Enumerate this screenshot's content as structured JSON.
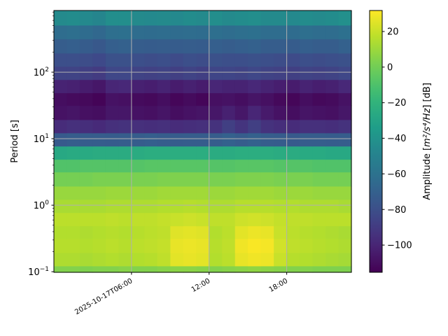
{
  "chart_data": {
    "type": "heatmap",
    "colormap": "viridis",
    "title": "",
    "xlabel": "",
    "ylabel": "Period [s]",
    "yscale": "log",
    "grid": true,
    "xlim": [
      "2025-10-17T00:00",
      "2025-10-17T23:00"
    ],
    "ylim": [
      0.098,
      845
    ],
    "x_ticks": [
      {
        "time": "2025-10-17T06:00",
        "label": "2025-10-17T06:00"
      },
      {
        "time": "2025-10-17T12:00",
        "label": "12:00"
      },
      {
        "time": "2025-10-17T18:00",
        "label": "18:00"
      }
    ],
    "y_ticks": [
      {
        "value": 0.1,
        "base": "10",
        "exp": "−1"
      },
      {
        "value": 1,
        "base": "10",
        "exp": "0"
      },
      {
        "value": 10,
        "base": "10",
        "exp": "1"
      },
      {
        "value": 100,
        "base": "10",
        "exp": "2"
      }
    ],
    "times": [
      "00:00",
      "01:00",
      "02:00",
      "03:00",
      "04:00",
      "05:00",
      "06:00",
      "07:00",
      "08:00",
      "09:00",
      "10:00",
      "11:00",
      "12:00",
      "13:00",
      "14:00",
      "15:00",
      "16:00",
      "17:00",
      "18:00",
      "19:00",
      "20:00",
      "21:00",
      "22:00"
    ],
    "periods": [
      0.1,
      0.15,
      0.25,
      0.4,
      0.6,
      1,
      1.5,
      2.5,
      4,
      6,
      10,
      15,
      25,
      40,
      60,
      100,
      150,
      250,
      400,
      650
    ],
    "values_db": [
      [
        4,
        4,
        3,
        4,
        4,
        5,
        4,
        4,
        5,
        6,
        6,
        5,
        4,
        5,
        6,
        7,
        6,
        5,
        4,
        4,
        3,
        3,
        3
      ],
      [
        14,
        14,
        13,
        14,
        15,
        14,
        15,
        16,
        18,
        26,
        27,
        26,
        15,
        17,
        27,
        29,
        28,
        20,
        16,
        15,
        14,
        13,
        12
      ],
      [
        16,
        16,
        15,
        16,
        17,
        16,
        17,
        18,
        19,
        27,
        28,
        27,
        16,
        18,
        29,
        31,
        30,
        22,
        18,
        17,
        16,
        15,
        14
      ],
      [
        15,
        15,
        14,
        15,
        16,
        15,
        16,
        17,
        18,
        25,
        26,
        25,
        15,
        17,
        26,
        28,
        27,
        20,
        17,
        16,
        15,
        14,
        13
      ],
      [
        17,
        17,
        17,
        17,
        18,
        17,
        18,
        18,
        19,
        20,
        21,
        20,
        18,
        18,
        21,
        22,
        21,
        19,
        18,
        18,
        17,
        17,
        17
      ],
      [
        13,
        13,
        13,
        13,
        14,
        14,
        14,
        14,
        15,
        15,
        16,
        15,
        14,
        14,
        16,
        16,
        16,
        15,
        15,
        14,
        14,
        14,
        13
      ],
      [
        9,
        9,
        9,
        9,
        10,
        10,
        10,
        10,
        11,
        11,
        11,
        11,
        10,
        10,
        11,
        11,
        11,
        10,
        10,
        10,
        9,
        9,
        9
      ],
      [
        1,
        1,
        1,
        2,
        2,
        2,
        2,
        2,
        3,
        3,
        3,
        3,
        2,
        2,
        3,
        3,
        3,
        2,
        2,
        2,
        1,
        1,
        1
      ],
      [
        -9,
        -9,
        -8,
        -8,
        -8,
        -8,
        -8,
        -7,
        -7,
        -7,
        -7,
        -7,
        -8,
        -8,
        -7,
        -7,
        -7,
        -8,
        -8,
        -8,
        -9,
        -9,
        -9
      ],
      [
        -27,
        -26,
        -26,
        -25,
        -25,
        -25,
        -25,
        -24,
        -24,
        -24,
        -24,
        -24,
        -25,
        -25,
        -24,
        -24,
        -24,
        -25,
        -25,
        -26,
        -26,
        -27,
        -27
      ],
      [
        -74,
        -72,
        -72,
        -72,
        -73,
        -72,
        -72,
        -71,
        -72,
        -73,
        -72,
        -72,
        -72,
        -70,
        -72,
        -70,
        -72,
        -73,
        -74,
        -72,
        -72,
        -73,
        -72
      ],
      [
        -97,
        -95,
        -96,
        -98,
        -95,
        -94,
        -95,
        -96,
        -95,
        -97,
        -96,
        -95,
        -94,
        -88,
        -93,
        -88,
        -94,
        -96,
        -97,
        -95,
        -95,
        -96,
        -94
      ],
      [
        -108,
        -107,
        -109,
        -110,
        -106,
        -106,
        -108,
        -109,
        -107,
        -110,
        -108,
        -107,
        -106,
        -102,
        -106,
        -100,
        -105,
        -108,
        -110,
        -107,
        -108,
        -109,
        -106
      ],
      [
        -110,
        -111,
        -112,
        -114,
        -108,
        -109,
        -111,
        -112,
        -110,
        -113,
        -111,
        -113,
        -109,
        -108,
        -110,
        -107,
        -109,
        -112,
        -113,
        -110,
        -112,
        -111,
        -108
      ],
      [
        -101,
        -102,
        -104,
        -106,
        -100,
        -99,
        -102,
        -103,
        -101,
        -104,
        -102,
        -104,
        -100,
        -101,
        -101,
        -99,
        -101,
        -103,
        -104,
        -101,
        -103,
        -102,
        -99
      ],
      [
        -86,
        -86,
        -88,
        -90,
        -84,
        -84,
        -86,
        -87,
        -86,
        -88,
        -86,
        -88,
        -85,
        -85,
        -86,
        -84,
        -86,
        -87,
        -88,
        -86,
        -87,
        -86,
        -84
      ],
      [
        -80,
        -80,
        -81,
        -83,
        -79,
        -79,
        -80,
        -81,
        -80,
        -82,
        -80,
        -81,
        -79,
        -80,
        -80,
        -79,
        -80,
        -81,
        -82,
        -80,
        -81,
        -80,
        -79
      ],
      [
        -72,
        -71,
        -73,
        -75,
        -71,
        -70,
        -72,
        -73,
        -72,
        -73,
        -72,
        -73,
        -71,
        -72,
        -71,
        -70,
        -72,
        -72,
        -73,
        -71,
        -72,
        -72,
        -70
      ],
      [
        -63,
        -62,
        -64,
        -66,
        -62,
        -61,
        -63,
        -64,
        -63,
        -64,
        -63,
        -64,
        -62,
        -63,
        -62,
        -61,
        -63,
        -63,
        -64,
        -62,
        -63,
        -63,
        -61
      ],
      [
        -45,
        -44,
        -46,
        -48,
        -43,
        -43,
        -45,
        -46,
        -45,
        -46,
        -44,
        -45,
        -43,
        -45,
        -44,
        -43,
        -45,
        -45,
        -46,
        -44,
        -45,
        -44,
        -42
      ]
    ],
    "colorbar": {
      "label_prefix": "Amplitude [",
      "label_math": "m²/s⁴/Hz",
      "label_suffix": "] [dB]",
      "range": [
        -115.3,
        31.8
      ],
      "ticks": [
        {
          "value": 20,
          "label": "20"
        },
        {
          "value": 0,
          "label": "0"
        },
        {
          "value": -20,
          "label": "−20"
        },
        {
          "value": -40,
          "label": "−40"
        },
        {
          "value": -60,
          "label": "−60"
        },
        {
          "value": -80,
          "label": "−80"
        },
        {
          "value": -100,
          "label": "−100"
        }
      ]
    }
  }
}
